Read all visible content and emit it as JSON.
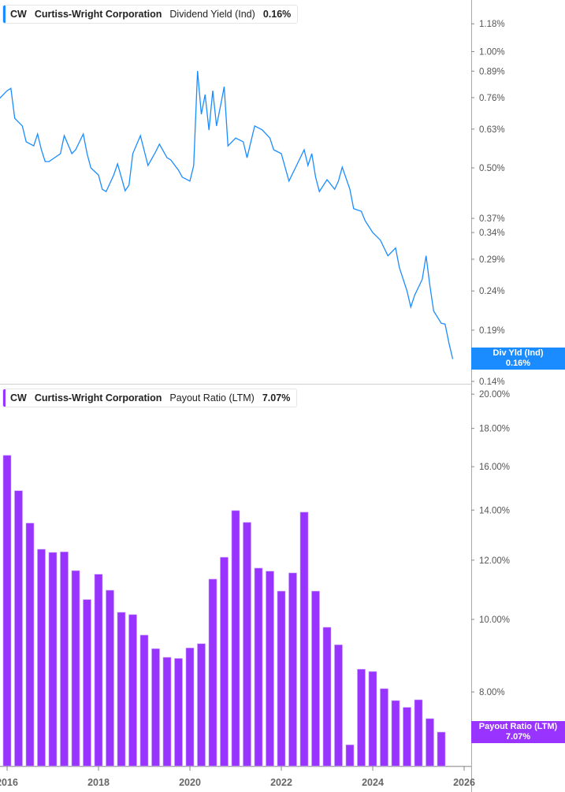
{
  "colors": {
    "line": "#1a8cff",
    "bar": "#9933ff",
    "axis": "#aaaaaa"
  },
  "top_legend": {
    "ticker": "CW",
    "company": "Curtiss-Wright Corporation",
    "metric": "Dividend Yield (Ind)",
    "value": "0.16%"
  },
  "top_tag": {
    "label": "Div Yld (Ind)",
    "value": "0.16%"
  },
  "bottom_legend": {
    "ticker": "CW",
    "company": "Curtiss-Wright Corporation",
    "metric": "Payout Ratio (LTM)",
    "value": "7.07%"
  },
  "bottom_tag": {
    "label": "Payout Ratio (LTM)",
    "value": "7.07%"
  },
  "chart_data": [
    {
      "type": "line",
      "series_name": "Dividend Yield (Ind)",
      "y_scale": "log",
      "ylim": [
        0.138,
        1.36
      ],
      "y_ticks": [
        "1.18%",
        "1.00%",
        "0.89%",
        "0.76%",
        "0.63%",
        "0.50%",
        "0.37%",
        "0.34%",
        "0.29%",
        "0.24%",
        "0.19%",
        "0.14%"
      ],
      "y_tick_values": [
        1.18,
        1.0,
        0.89,
        0.76,
        0.63,
        0.5,
        0.37,
        0.34,
        0.29,
        0.24,
        0.19,
        0.14
      ],
      "grid": false,
      "points": [
        [
          "2015-11",
          0.756
        ],
        [
          "2016-01",
          0.792
        ],
        [
          "2016-02",
          0.803
        ],
        [
          "2016-03",
          0.672
        ],
        [
          "2016-05",
          0.642
        ],
        [
          "2016-06",
          0.584
        ],
        [
          "2016-08",
          0.57
        ],
        [
          "2016-09",
          0.612
        ],
        [
          "2016-10",
          0.557
        ],
        [
          "2016-11",
          0.519
        ],
        [
          "2016-12",
          0.519
        ],
        [
          "2017-03",
          0.544
        ],
        [
          "2017-04",
          0.606
        ],
        [
          "2017-06",
          0.544
        ],
        [
          "2017-07",
          0.557
        ],
        [
          "2017-09",
          0.612
        ],
        [
          "2017-10",
          0.544
        ],
        [
          "2017-11",
          0.5
        ],
        [
          "2018-01",
          0.479
        ],
        [
          "2018-02",
          0.44
        ],
        [
          "2018-03",
          0.434
        ],
        [
          "2018-05",
          0.479
        ],
        [
          "2018-06",
          0.512
        ],
        [
          "2018-08",
          0.436
        ],
        [
          "2018-09",
          0.451
        ],
        [
          "2018-10",
          0.544
        ],
        [
          "2018-12",
          0.606
        ],
        [
          "2019-02",
          0.507
        ],
        [
          "2019-04",
          0.55
        ],
        [
          "2019-05",
          0.576
        ],
        [
          "2019-07",
          0.531
        ],
        [
          "2019-08",
          0.524
        ],
        [
          "2019-10",
          0.493
        ],
        [
          "2019-11",
          0.473
        ],
        [
          "2020-01",
          0.462
        ],
        [
          "2020-02",
          0.507
        ],
        [
          "2020-03",
          0.891
        ],
        [
          "2020-04",
          0.688
        ],
        [
          "2020-05",
          0.774
        ],
        [
          "2020-06",
          0.626
        ],
        [
          "2020-07",
          0.792
        ],
        [
          "2020-08",
          0.642
        ],
        [
          "2020-09",
          0.721
        ],
        [
          "2020-10",
          0.811
        ],
        [
          "2020-11",
          0.57
        ],
        [
          "2021-01",
          0.597
        ],
        [
          "2021-03",
          0.584
        ],
        [
          "2021-04",
          0.531
        ],
        [
          "2021-06",
          0.642
        ],
        [
          "2021-08",
          0.627
        ],
        [
          "2021-10",
          0.597
        ],
        [
          "2021-11",
          0.557
        ],
        [
          "2022-01",
          0.544
        ],
        [
          "2022-03",
          0.462
        ],
        [
          "2022-05",
          0.507
        ],
        [
          "2022-07",
          0.557
        ],
        [
          "2022-08",
          0.507
        ],
        [
          "2022-09",
          0.544
        ],
        [
          "2022-10",
          0.473
        ],
        [
          "2022-11",
          0.434
        ],
        [
          "2023-01",
          0.466
        ],
        [
          "2023-03",
          0.44
        ],
        [
          "2023-04",
          0.462
        ],
        [
          "2023-05",
          0.502
        ],
        [
          "2023-07",
          0.44
        ],
        [
          "2023-08",
          0.392
        ],
        [
          "2023-10",
          0.386
        ],
        [
          "2023-11",
          0.365
        ],
        [
          "2024-01",
          0.34
        ],
        [
          "2024-03",
          0.325
        ],
        [
          "2024-05",
          0.296
        ],
        [
          "2024-07",
          0.31
        ],
        [
          "2024-08",
          0.276
        ],
        [
          "2024-10",
          0.24
        ],
        [
          "2024-11",
          0.218
        ],
        [
          "2024-12",
          0.234
        ],
        [
          "2025-02",
          0.257
        ],
        [
          "2025-03",
          0.296
        ],
        [
          "2025-04",
          0.248
        ],
        [
          "2025-05",
          0.213
        ],
        [
          "2025-07",
          0.198
        ],
        [
          "2025-08",
          0.197
        ],
        [
          "2025-09",
          0.176
        ],
        [
          "2025-10",
          0.16
        ]
      ]
    },
    {
      "type": "bar",
      "series_name": "Payout Ratio (LTM)",
      "y_scale": "log",
      "ylim": [
        6.37,
        20.5
      ],
      "y_ticks": [
        "20.00%",
        "18.00%",
        "16.00%",
        "14.00%",
        "12.00%",
        "10.00%",
        "8.00%"
      ],
      "y_tick_values": [
        20,
        18,
        16,
        14,
        12,
        10,
        8
      ],
      "x_ticks": [
        "2016",
        "2018",
        "2020",
        "2022",
        "2024",
        "2026"
      ],
      "grid": false,
      "dates": [
        "2016-01",
        "2016-04",
        "2016-07",
        "2016-10",
        "2017-01",
        "2017-04",
        "2017-07",
        "2017-10",
        "2018-01",
        "2018-04",
        "2018-07",
        "2018-10",
        "2019-01",
        "2019-04",
        "2019-07",
        "2019-10",
        "2020-01",
        "2020-04",
        "2020-07",
        "2020-10",
        "2021-01",
        "2021-04",
        "2021-07",
        "2021-10",
        "2022-01",
        "2022-04",
        "2022-07",
        "2022-10",
        "2023-01",
        "2023-04",
        "2023-07",
        "2023-10",
        "2024-01",
        "2024-04",
        "2024-07",
        "2024-10",
        "2025-01",
        "2025-04",
        "2025-07"
      ],
      "values": [
        16.57,
        14.86,
        13.45,
        12.41,
        12.29,
        12.31,
        11.62,
        10.63,
        11.49,
        10.94,
        10.22,
        10.15,
        9.53,
        9.14,
        8.9,
        8.87,
        9.16,
        9.28,
        11.32,
        12.11,
        13.98,
        13.48,
        11.71,
        11.6,
        10.91,
        11.54,
        13.91,
        10.91,
        9.76,
        9.25,
        6.8,
        8.58,
        8.52,
        8.08,
        7.79,
        7.63,
        7.81,
        7.37,
        7.07
      ]
    }
  ]
}
